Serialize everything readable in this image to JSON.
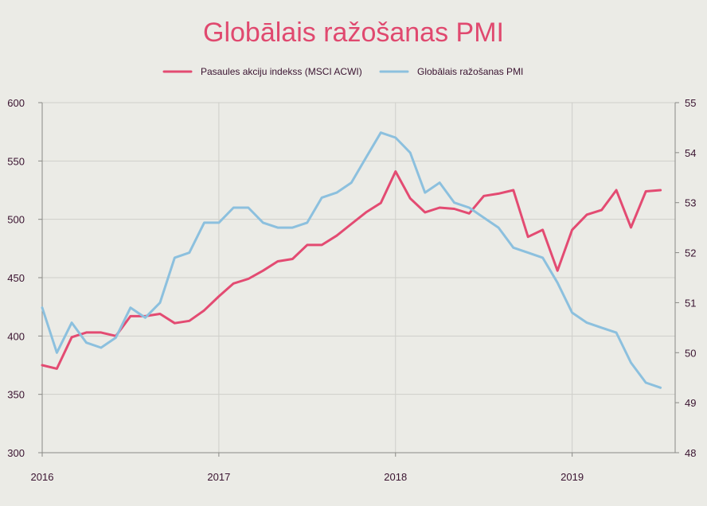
{
  "chart_data": {
    "type": "line",
    "title": "Globālais ražošanas PMI",
    "legend_position": "top-center",
    "grid": true,
    "colors": {
      "background": "#ebebe6",
      "series1": "#e34b72",
      "series2": "#8cc0de",
      "grid": "#cfcfca",
      "text": "#3a1330",
      "title": "#e0496f"
    },
    "x": {
      "range": [
        2016.0,
        2019.583
      ],
      "ticks": [
        2016,
        2017,
        2018,
        2019
      ],
      "tick_labels": [
        "2016",
        "2017",
        "2018",
        "2019"
      ]
    },
    "y_left": {
      "range": [
        300,
        600
      ],
      "ticks": [
        300,
        350,
        400,
        450,
        500,
        550,
        600
      ],
      "tick_labels": [
        "300",
        "350",
        "400",
        "450",
        "500",
        "550",
        "600"
      ]
    },
    "y_right": {
      "range": [
        48,
        55
      ],
      "ticks": [
        48,
        49,
        50,
        51,
        52,
        53,
        54,
        55
      ],
      "tick_labels": [
        "48",
        "49",
        "50",
        "51",
        "52",
        "53",
        "54",
        "55"
      ]
    },
    "series": [
      {
        "name": "Pasaules akciju indekss (MSCI ACWI)",
        "axis": "left",
        "x": [
          2016.0,
          2016.083,
          2016.167,
          2016.25,
          2016.333,
          2016.417,
          2016.5,
          2016.583,
          2016.667,
          2016.75,
          2016.833,
          2016.917,
          2017.0,
          2017.083,
          2017.167,
          2017.25,
          2017.333,
          2017.417,
          2017.5,
          2017.583,
          2017.667,
          2017.75,
          2017.833,
          2017.917,
          2018.0,
          2018.083,
          2018.167,
          2018.25,
          2018.333,
          2018.417,
          2018.5,
          2018.583,
          2018.667,
          2018.75,
          2018.833,
          2018.917,
          2019.0,
          2019.083,
          2019.167,
          2019.25,
          2019.333,
          2019.417,
          2019.5
        ],
        "values": [
          375,
          372,
          399,
          403,
          403,
          400,
          417,
          417,
          419,
          411,
          413,
          422,
          434,
          445,
          449,
          456,
          464,
          466,
          478,
          478,
          486,
          496,
          506,
          514,
          541,
          518,
          506,
          510,
          509,
          505,
          520,
          522,
          525,
          485,
          491,
          456,
          491,
          504,
          508,
          525,
          493,
          524,
          525
        ]
      },
      {
        "name": "Globālais ražošanas PMI",
        "axis": "right",
        "x": [
          2016.0,
          2016.083,
          2016.167,
          2016.25,
          2016.333,
          2016.417,
          2016.5,
          2016.583,
          2016.667,
          2016.75,
          2016.833,
          2016.917,
          2017.0,
          2017.083,
          2017.167,
          2017.25,
          2017.333,
          2017.417,
          2017.5,
          2017.583,
          2017.667,
          2017.75,
          2017.833,
          2017.917,
          2018.0,
          2018.083,
          2018.167,
          2018.25,
          2018.333,
          2018.417,
          2018.5,
          2018.583,
          2018.667,
          2018.75,
          2018.833,
          2018.917,
          2019.0,
          2019.083,
          2019.167,
          2019.25,
          2019.333,
          2019.417,
          2019.5
        ],
        "values": [
          50.9,
          50.0,
          50.6,
          50.2,
          50.1,
          50.3,
          50.9,
          50.7,
          51.0,
          51.9,
          52.0,
          52.6,
          52.6,
          52.9,
          52.9,
          52.6,
          52.5,
          52.5,
          52.6,
          53.1,
          53.2,
          53.4,
          53.9,
          54.4,
          54.3,
          54.0,
          53.2,
          53.4,
          53.0,
          52.9,
          52.7,
          52.5,
          52.1,
          52.0,
          51.9,
          51.4,
          50.8,
          50.6,
          50.5,
          50.4,
          49.8,
          49.4,
          49.3
        ]
      }
    ]
  }
}
